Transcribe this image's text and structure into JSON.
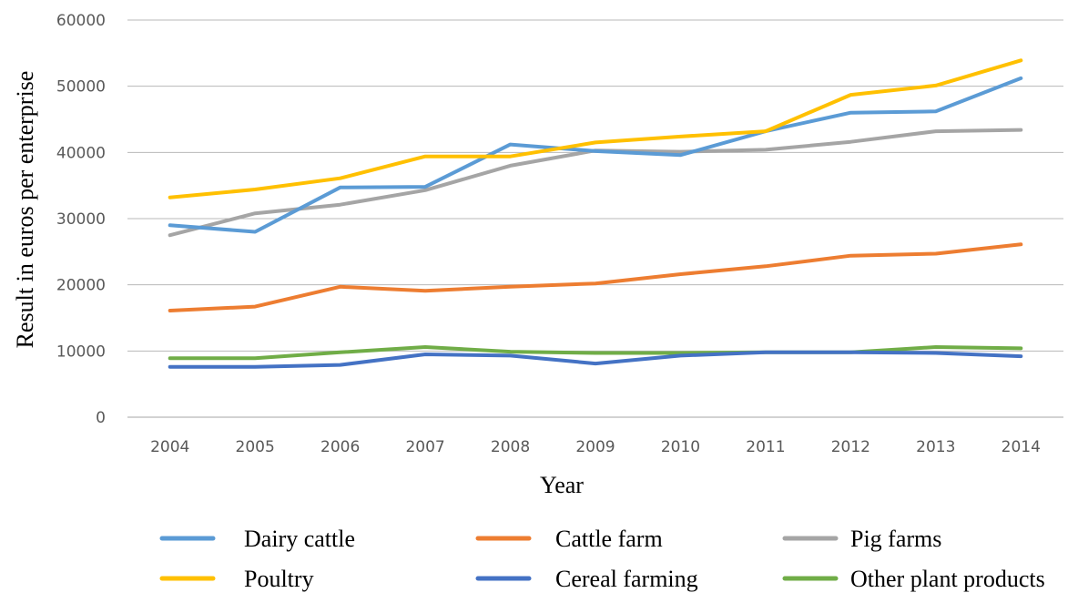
{
  "chart_data": {
    "type": "line",
    "title": "",
    "xlabel": "Year",
    "ylabel": "Result in euros per enterprise",
    "ylim": [
      0,
      60000
    ],
    "yticks": [
      0,
      10000,
      20000,
      30000,
      40000,
      50000,
      60000
    ],
    "grid": true,
    "legend_position": "bottom",
    "categories": [
      "2004",
      "2005",
      "2006",
      "2007",
      "2008",
      "2009",
      "2010",
      "2011",
      "2012",
      "2013",
      "2014"
    ],
    "series": [
      {
        "name": "Dairy cattle",
        "color": "#5b9bd5",
        "values": [
          29000,
          28000,
          34700,
          34800,
          41200,
          40200,
          39600,
          43200,
          46000,
          46200,
          51200
        ]
      },
      {
        "name": "Cattle farm",
        "color": "#ed7d31",
        "values": [
          16100,
          16700,
          19700,
          19100,
          19700,
          20200,
          21600,
          22800,
          24400,
          24700,
          26100
        ]
      },
      {
        "name": "Pig farms",
        "color": "#a5a5a5",
        "values": [
          27500,
          30800,
          32100,
          34300,
          38000,
          40300,
          40100,
          40400,
          41600,
          43200,
          43400
        ]
      },
      {
        "name": "Poultry",
        "color": "#ffc000",
        "values": [
          33200,
          34400,
          36100,
          39400,
          39400,
          41500,
          42400,
          43200,
          48700,
          50100,
          53900
        ]
      },
      {
        "name": "Cereal farming",
        "color": "#4472c4",
        "values": [
          7600,
          7600,
          7900,
          9500,
          9300,
          8100,
          9300,
          9800,
          9800,
          9700,
          9200
        ]
      },
      {
        "name": "Other plant products",
        "color": "#70ad47",
        "values": [
          8900,
          8900,
          9800,
          10600,
          9900,
          9700,
          9700,
          9800,
          9800,
          10600,
          10400
        ]
      }
    ]
  }
}
